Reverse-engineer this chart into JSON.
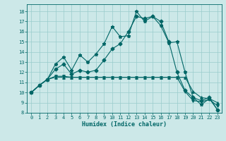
{
  "xlabel": "Humidex (Indice chaleur)",
  "xlim": [
    -0.5,
    23.5
  ],
  "ylim": [
    8,
    18.7
  ],
  "yticks": [
    8,
    9,
    10,
    11,
    12,
    13,
    14,
    15,
    16,
    17,
    18
  ],
  "xticks": [
    0,
    1,
    2,
    3,
    4,
    5,
    6,
    7,
    8,
    9,
    10,
    11,
    12,
    13,
    14,
    15,
    16,
    17,
    18,
    19,
    20,
    21,
    22,
    23
  ],
  "background_color": "#cce8e8",
  "grid_color": "#99cccc",
  "line_color": "#006666",
  "series": [
    [
      10.0,
      10.7,
      11.3,
      11.5,
      11.5,
      11.5,
      11.5,
      11.5,
      11.5,
      11.5,
      11.5,
      11.5,
      11.5,
      11.5,
      11.5,
      11.5,
      11.5,
      11.5,
      11.5,
      11.5,
      10.1,
      9.5,
      9.4,
      9.0
    ],
    [
      10.0,
      10.7,
      11.3,
      12.8,
      13.5,
      12.2,
      13.7,
      13.0,
      13.8,
      14.8,
      16.5,
      15.5,
      15.6,
      18.0,
      17.0,
      17.5,
      16.6,
      14.9,
      15.0,
      12.0,
      9.5,
      8.8,
      9.4,
      8.3
    ],
    [
      10.0,
      10.7,
      11.3,
      12.3,
      12.8,
      11.8,
      12.2,
      12.0,
      12.2,
      13.2,
      14.3,
      14.8,
      16.0,
      17.5,
      17.3,
      17.5,
      17.0,
      15.0,
      12.0,
      10.2,
      9.5,
      9.2,
      9.5,
      8.3
    ],
    [
      10.0,
      10.7,
      11.3,
      11.6,
      11.6,
      11.5,
      11.5,
      11.5,
      11.5,
      11.5,
      11.5,
      11.5,
      11.5,
      11.5,
      11.5,
      11.5,
      11.5,
      11.5,
      11.5,
      10.1,
      9.2,
      9.1,
      9.3,
      8.7
    ]
  ],
  "markers": [
    "^",
    "*",
    "D",
    "v"
  ],
  "markersize": [
    2.5,
    3.5,
    2.5,
    2.5
  ],
  "linewidth": 0.8
}
